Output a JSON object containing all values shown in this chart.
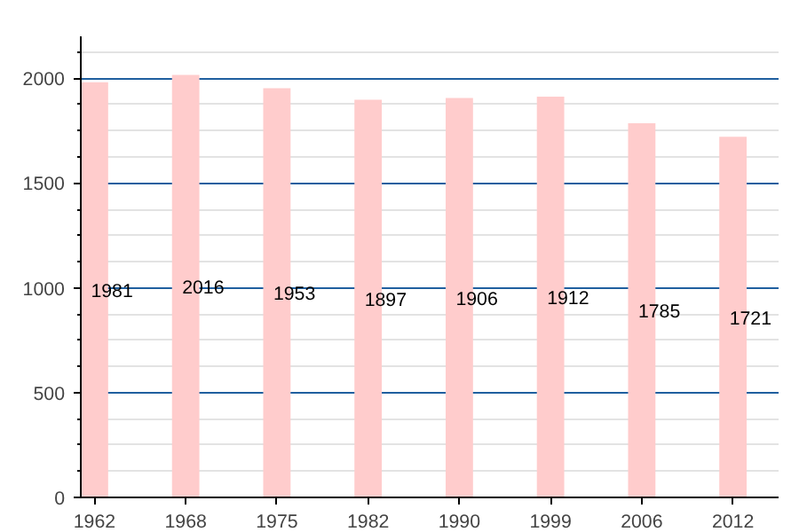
{
  "chart_data": {
    "type": "bar",
    "categories": [
      "1962",
      "1968",
      "1975",
      "1982",
      "1990",
      "1999",
      "2006",
      "2012"
    ],
    "values": [
      1981,
      2016,
      1953,
      1897,
      1906,
      1912,
      1785,
      1721
    ],
    "color": "#ffcccc",
    "ylim": [
      0,
      2200
    ],
    "yticks": [
      0,
      500,
      1000,
      1500,
      2000
    ],
    "grid": "y",
    "data_labels": true
  }
}
